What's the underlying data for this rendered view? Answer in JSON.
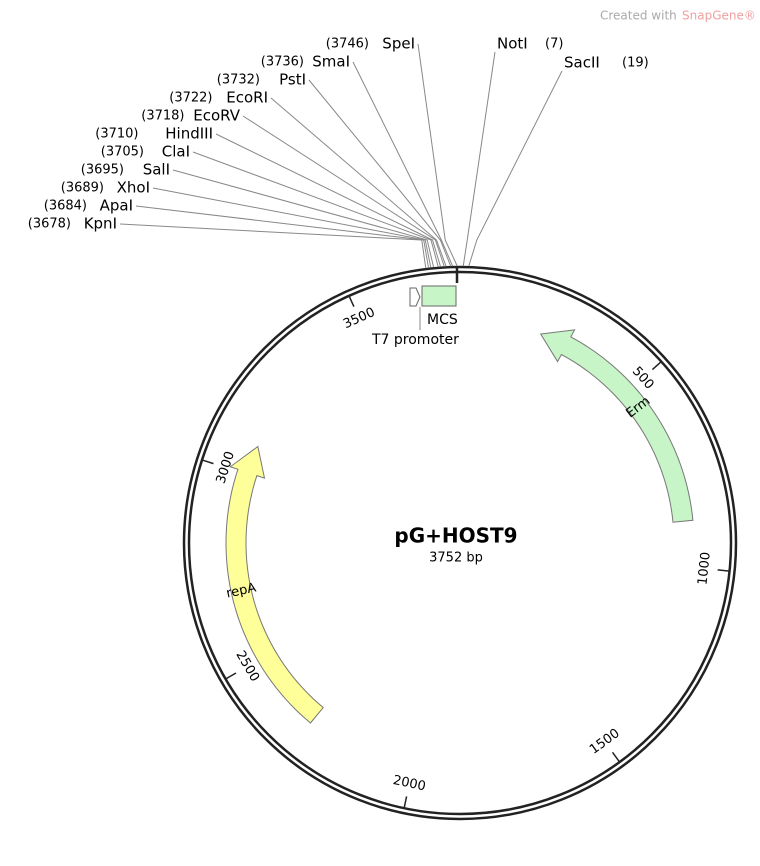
{
  "watermark": {
    "text": "Created with",
    "brand": "SnapGene®"
  },
  "plasmid": {
    "name": "pG+HOST9",
    "length_label": "3752 bp",
    "length": 3752
  },
  "sites": [
    {
      "name": "SpeI",
      "position": 3746,
      "position_label": "(3746)"
    },
    {
      "name": "SmaI",
      "position": 3736,
      "position_label": "(3736)"
    },
    {
      "name": "PstI",
      "position": 3732,
      "position_label": "(3732)"
    },
    {
      "name": "EcoRI",
      "position": 3722,
      "position_label": "(3722)"
    },
    {
      "name": "EcoRV",
      "position": 3718,
      "position_label": "(3718)"
    },
    {
      "name": "HindIII",
      "position": 3710,
      "position_label": "(3710)"
    },
    {
      "name": "ClaI",
      "position": 3705,
      "position_label": "(3705)"
    },
    {
      "name": "SalI",
      "position": 3695,
      "position_label": "(3695)"
    },
    {
      "name": "XhoI",
      "position": 3689,
      "position_label": "(3689)"
    },
    {
      "name": "ApaI",
      "position": 3684,
      "position_label": "(3684)"
    },
    {
      "name": "KpnI",
      "position": 3678,
      "position_label": "(3678)"
    },
    {
      "name": "NotI",
      "position": 7,
      "position_label": "(7)"
    },
    {
      "name": "SacII",
      "position": 19,
      "position_label": "(19)"
    }
  ],
  "ticks": [
    500,
    1000,
    1500,
    2000,
    2500,
    3000,
    3500
  ],
  "features": [
    {
      "name": "Erm"
    },
    {
      "name": "repA"
    },
    {
      "name": "MCS"
    },
    {
      "name": "T7 promoter"
    }
  ]
}
